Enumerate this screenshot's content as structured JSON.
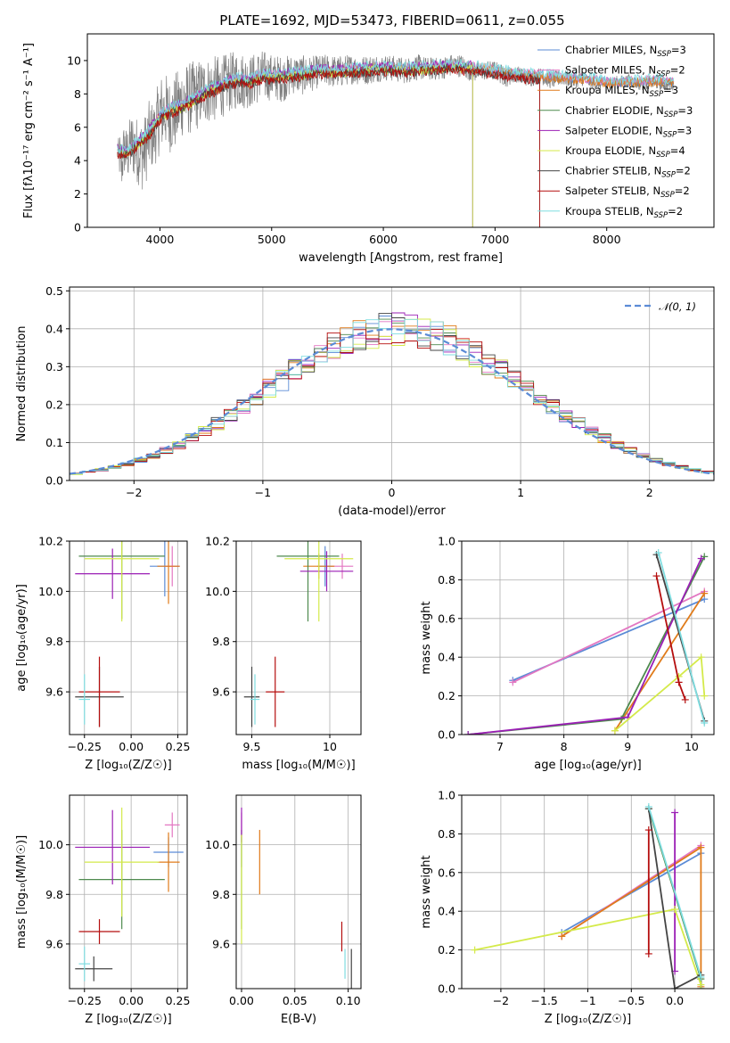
{
  "figure": {
    "title": "PLATE=1692, MJD=53473, FIBERID=0611, z=0.055"
  },
  "chart_data": [
    {
      "id": "spectrum",
      "type": "line",
      "title": "PLATE=1692, MJD=53473, FIBERID=0611, z=0.055",
      "xlabel": "wavelength [Angstrom, rest frame]",
      "ylabel": "Flux [fλ10⁻¹⁷ erg cm⁻² s⁻¹ A⁻¹]",
      "xlim": [
        3350,
        8960
      ],
      "ylim": [
        0,
        11.6
      ],
      "xticks": [
        4000,
        5000,
        6000,
        7000,
        8000
      ],
      "yticks": [
        0,
        2,
        4,
        6,
        8,
        10
      ],
      "grid": false,
      "legend_position": "upper-right",
      "observed": {
        "color": "#808080",
        "x": [
          3620,
          3640,
          3660,
          3680,
          3700,
          3750,
          3800,
          3850,
          3900,
          3950,
          4000,
          4050,
          4100,
          4150,
          4200,
          4300,
          4400,
          4500,
          4600,
          4700,
          4800,
          4900,
          5000,
          5100,
          5200,
          5300,
          5400,
          5500,
          5600,
          5700,
          5800,
          5900,
          6000,
          6100,
          6200,
          6300,
          6400,
          6500,
          6600,
          6700,
          6800,
          6900,
          7000,
          7100,
          7200,
          7300,
          7400,
          7500,
          7600,
          7700,
          7800,
          7900,
          8000,
          8100,
          8200,
          8300,
          8400,
          8500
        ],
        "y": [
          5.0,
          4.2,
          3.6,
          4.8,
          4.3,
          5.0,
          4.6,
          4.3,
          5.4,
          5.6,
          6.8,
          7.0,
          6.6,
          7.0,
          7.6,
          7.8,
          8.2,
          8.3,
          8.6,
          8.9,
          8.7,
          9.1,
          9.0,
          8.9,
          9.2,
          9.1,
          9.3,
          9.4,
          9.3,
          9.5,
          9.4,
          9.5,
          9.6,
          9.5,
          9.4,
          9.6,
          9.5,
          9.5,
          9.7,
          9.7,
          9.3,
          9.4,
          9.4,
          9.0,
          9.2,
          8.9,
          9.1,
          8.8,
          9.0,
          8.8,
          8.9,
          8.6,
          8.6,
          8.7,
          8.8,
          8.6,
          8.7,
          8.6
        ],
        "noise": [
          0,
          1.6,
          1.4,
          1.8,
          1.7,
          2.0,
          2.0,
          2.2,
          2.2,
          2.0,
          2.4,
          2.3,
          2.2,
          2.4,
          2.2,
          2.2,
          2.0,
          2.0,
          1.8,
          1.8,
          1.6,
          1.6,
          1.4,
          1.4,
          1.2,
          1.2,
          1.0,
          1.0,
          1.0,
          0.9,
          0.9,
          0.9,
          0.8,
          0.8,
          0.8,
          0.8,
          0.7,
          0.7,
          0.7,
          0.7,
          0.6,
          0.6,
          0.6,
          0.6,
          0.5,
          0.5,
          0.5,
          0.5,
          0.5,
          0.5,
          0.4,
          0.4,
          0.4,
          0.4,
          0.4,
          0.4,
          0.4,
          0.4
        ]
      },
      "model_x": [
        3620,
        3700,
        3800,
        3900,
        4000,
        4100,
        4200,
        4300,
        4400,
        4500,
        4600,
        4700,
        4800,
        4900,
        5000,
        5200,
        5400,
        5600,
        5800,
        6000,
        6200,
        6400,
        6600,
        6800,
        7000,
        7200,
        7400,
        7600,
        7800,
        8000,
        8200,
        8400,
        8600
      ],
      "model_y": [
        4.5,
        4.4,
        5.0,
        5.6,
        6.6,
        7.0,
        7.2,
        7.6,
        8.0,
        8.3,
        8.6,
        8.8,
        8.7,
        9.0,
        9.0,
        9.1,
        9.3,
        9.3,
        9.4,
        9.5,
        9.4,
        9.5,
        9.6,
        9.5,
        9.3,
        9.1,
        9.0,
        8.9,
        8.8,
        8.6,
        8.6,
        8.7,
        8.6
      ],
      "models": [
        {
          "name": "Chabrier MILES, N_SSP=3",
          "color": "#5b8bd6",
          "offset": 0.1,
          "xmax": 8960
        },
        {
          "name": "Salpeter MILES, N_SSP=2",
          "color": "#e377c2",
          "offset": 0.15,
          "xmax": 8960
        },
        {
          "name": "Kroupa MILES, N_SSP=3",
          "color": "#e07b1a",
          "offset": 0.05,
          "xmax": 8960
        },
        {
          "name": "Chabrier ELODIE, N_SSP=3",
          "color": "#4e8a4e",
          "offset": 0.0,
          "xmax": 6800
        },
        {
          "name": "Salpeter ELODIE, N_SSP=3",
          "color": "#9b1fb5",
          "offset": 0.2,
          "xmax": 6800
        },
        {
          "name": "Kroupa ELODIE, N_SSP=4",
          "color": "#d4ea4a",
          "offset": -0.05,
          "xmax": 6800
        },
        {
          "name": "Chabrier STELIB, N_SSP=2",
          "color": "#444444",
          "offset": -0.1,
          "xmax": 7400
        },
        {
          "name": "Salpeter STELIB, N_SSP=2",
          "color": "#b50e0e",
          "offset": -0.15,
          "xmax": 7400
        },
        {
          "name": "Kroupa STELIB, N_SSP=2",
          "color": "#7fdde0",
          "offset": 0.25,
          "xmax": 8960
        }
      ]
    },
    {
      "id": "residuals",
      "type": "line",
      "xlabel": "(data-model)/error",
      "ylabel": "Normed distribution",
      "xlim": [
        -2.5,
        2.5
      ],
      "ylim": [
        0,
        0.51
      ],
      "xticks": [
        -2,
        -1,
        0,
        1,
        2
      ],
      "yticks": [
        0.0,
        0.1,
        0.2,
        0.3,
        0.4,
        0.5
      ],
      "grid": true,
      "legend_position": "upper-right",
      "reference": {
        "name": "𝒩(0, 1)",
        "color": "#5b8bd6",
        "style": "dashed"
      },
      "bin_width": 0.1,
      "bin_start": -2.5
    },
    {
      "id": "age_vs_Z",
      "type": "scatter",
      "xlabel": "Z [log₁₀(Z/Z☉)]",
      "ylabel": "age  [log₁₀(age/yr)]",
      "xlim": [
        -0.33,
        0.3
      ],
      "ylim": [
        9.43,
        10.2
      ],
      "xticks": [
        -0.25,
        0.0,
        0.25
      ],
      "yticks": [
        9.6,
        9.8,
        10.0,
        10.2
      ],
      "grid": true,
      "points": [
        {
          "color": "#5b8bd6",
          "x": 0.18,
          "y": 10.1,
          "xerr": 0.08,
          "yerr": 0.12
        },
        {
          "color": "#e377c2",
          "x": 0.22,
          "y": 10.1,
          "xerr": 0.04,
          "yerr": 0.08
        },
        {
          "color": "#e07b1a",
          "x": 0.2,
          "y": 10.1,
          "xerr": 0.06,
          "yerr": 0.15
        },
        {
          "color": "#4e8a4e",
          "x": -0.05,
          "y": 10.14,
          "xerr": 0.23,
          "yerr": 0.25
        },
        {
          "color": "#9b1fb5",
          "x": -0.1,
          "y": 10.07,
          "xerr": 0.2,
          "yerr": 0.1
        },
        {
          "color": "#d4ea4a",
          "x": -0.05,
          "y": 10.13,
          "xerr": 0.2,
          "yerr": 0.25
        },
        {
          "color": "#444444",
          "x": -0.17,
          "y": 9.58,
          "xerr": 0.13,
          "yerr": 0.12
        },
        {
          "color": "#b50e0e",
          "x": -0.17,
          "y": 9.6,
          "xerr": 0.11,
          "yerr": 0.14
        },
        {
          "color": "#7fdde0",
          "x": -0.25,
          "y": 9.57,
          "xerr": 0.03,
          "yerr": 0.1
        }
      ]
    },
    {
      "id": "age_vs_mass",
      "type": "scatter",
      "xlabel": "mass [log₁₀(M/M☉)]",
      "xlim": [
        9.4,
        10.2
      ],
      "ylim": [
        9.43,
        10.2
      ],
      "xticks": [
        9.5,
        10.0
      ],
      "yticks": [
        9.6,
        9.8,
        10.0,
        10.2
      ],
      "grid": true,
      "points": [
        {
          "color": "#5b8bd6",
          "x": 9.97,
          "y": 10.1,
          "xerr": 0.05,
          "yerr": 0.08
        },
        {
          "color": "#e377c2",
          "x": 10.08,
          "y": 10.1,
          "xerr": 0.07,
          "yerr": 0.05
        },
        {
          "color": "#e07b1a",
          "x": 9.93,
          "y": 10.1,
          "xerr": 0.1,
          "yerr": 0.05
        },
        {
          "color": "#4e8a4e",
          "x": 9.86,
          "y": 10.14,
          "xerr": 0.2,
          "yerr": 0.26
        },
        {
          "color": "#9b1fb5",
          "x": 9.98,
          "y": 10.08,
          "xerr": 0.17,
          "yerr": 0.08
        },
        {
          "color": "#d4ea4a",
          "x": 9.93,
          "y": 10.13,
          "xerr": 0.22,
          "yerr": 0.25
        },
        {
          "color": "#444444",
          "x": 9.5,
          "y": 9.58,
          "xerr": 0.05,
          "yerr": 0.12
        },
        {
          "color": "#b50e0e",
          "x": 9.65,
          "y": 9.6,
          "xerr": 0.06,
          "yerr": 0.14
        },
        {
          "color": "#7fdde0",
          "x": 9.52,
          "y": 9.57,
          "xerr": 0.03,
          "yerr": 0.1
        }
      ]
    },
    {
      "id": "weight_vs_age",
      "type": "line",
      "xlabel": "age  [log₁₀(age/yr)]",
      "ylabel": "mass weight",
      "xlim": [
        6.4,
        10.35
      ],
      "ylim": [
        0,
        1.0
      ],
      "xticks": [
        7,
        8,
        9,
        10
      ],
      "yticks": [
        0.0,
        0.2,
        0.4,
        0.6,
        0.8,
        1.0
      ],
      "grid": true,
      "series": [
        {
          "color": "#5b8bd6",
          "x": [
            7.2,
            10.2
          ],
          "y": [
            0.28,
            0.7
          ]
        },
        {
          "color": "#e377c2",
          "x": [
            7.2,
            10.2
          ],
          "y": [
            0.27,
            0.74
          ]
        },
        {
          "color": "#e07b1a",
          "x": [
            8.8,
            10.2
          ],
          "y": [
            0.02,
            0.73
          ]
        },
        {
          "color": "#4e8a4e",
          "x": [
            6.5,
            8.9,
            10.2
          ],
          "y": [
            0.0,
            0.08,
            0.92
          ]
        },
        {
          "color": "#9b1fb5",
          "x": [
            6.5,
            9.0,
            10.15
          ],
          "y": [
            0.0,
            0.09,
            0.91
          ]
        },
        {
          "color": "#d4ea4a",
          "x": [
            8.8,
            9.8,
            10.15,
            10.2
          ],
          "y": [
            0.02,
            0.3,
            0.4,
            0.2
          ]
        },
        {
          "color": "#444444",
          "x": [
            9.45,
            10.2
          ],
          "y": [
            0.93,
            0.07
          ]
        },
        {
          "color": "#b50e0e",
          "x": [
            9.45,
            9.8,
            9.9
          ],
          "y": [
            0.82,
            0.27,
            0.18
          ]
        },
        {
          "color": "#7fdde0",
          "x": [
            9.48,
            10.2
          ],
          "y": [
            0.94,
            0.06
          ]
        }
      ]
    },
    {
      "id": "mass_vs_Z",
      "type": "scatter",
      "xlabel": "Z [log₁₀(Z/Z☉)]",
      "ylabel": "mass [log₁₀(M/M☉)]",
      "xlim": [
        -0.33,
        0.3
      ],
      "ylim": [
        9.42,
        10.2
      ],
      "xticks": [
        -0.25,
        0.0,
        0.25
      ],
      "yticks": [
        9.6,
        9.8,
        10.0
      ],
      "grid": true,
      "points": [
        {
          "color": "#5b8bd6",
          "x": 0.2,
          "y": 9.97,
          "xerr": 0.08,
          "yerr": 0.06
        },
        {
          "color": "#e377c2",
          "x": 0.22,
          "y": 10.08,
          "xerr": 0.04,
          "yerr": 0.05
        },
        {
          "color": "#e07b1a",
          "x": 0.2,
          "y": 9.93,
          "xerr": 0.06,
          "yerr": 0.12
        },
        {
          "color": "#4e8a4e",
          "x": -0.05,
          "y": 9.86,
          "xerr": 0.23,
          "yerr": 0.2
        },
        {
          "color": "#9b1fb5",
          "x": -0.1,
          "y": 9.99,
          "xerr": 0.2,
          "yerr": 0.15
        },
        {
          "color": "#d4ea4a",
          "x": -0.05,
          "y": 9.93,
          "xerr": 0.2,
          "yerr": 0.22
        },
        {
          "color": "#444444",
          "x": -0.2,
          "y": 9.5,
          "xerr": 0.1,
          "yerr": 0.05
        },
        {
          "color": "#b50e0e",
          "x": -0.17,
          "y": 9.65,
          "xerr": 0.11,
          "yerr": 0.05
        },
        {
          "color": "#7fdde0",
          "x": -0.25,
          "y": 9.52,
          "xerr": 0.03,
          "yerr": 0.07
        }
      ]
    },
    {
      "id": "mass_vs_ebv",
      "type": "scatter",
      "xlabel": "E(B-V)",
      "xlim": [
        -0.005,
        0.112
      ],
      "ylim": [
        9.42,
        10.2
      ],
      "xticks": [
        0.0,
        0.05,
        0.1
      ],
      "yticks": [
        9.6,
        9.8,
        10.0
      ],
      "grid": true,
      "points": [
        {
          "color": "#5b8bd6",
          "x": 0.0,
          "y": 9.97,
          "xerr": 0,
          "yerr": 0.06
        },
        {
          "color": "#e377c2",
          "x": 0.0,
          "y": 10.08,
          "xerr": 0,
          "yerr": 0.05
        },
        {
          "color": "#e07b1a",
          "x": 0.017,
          "y": 9.93,
          "xerr": 0,
          "yerr": 0.13
        },
        {
          "color": "#4e8a4e",
          "x": 0.0,
          "y": 9.86,
          "xerr": 0,
          "yerr": 0.2
        },
        {
          "color": "#9b1fb5",
          "x": 0.0,
          "y": 10.08,
          "xerr": 0,
          "yerr": 0.07
        },
        {
          "color": "#d4ea4a",
          "x": 0.0,
          "y": 9.82,
          "xerr": 0,
          "yerr": 0.22
        },
        {
          "color": "#444444",
          "x": 0.103,
          "y": 9.5,
          "xerr": 0,
          "yerr": 0.08
        },
        {
          "color": "#b50e0e",
          "x": 0.094,
          "y": 9.63,
          "xerr": 0,
          "yerr": 0.06
        },
        {
          "color": "#7fdde0",
          "x": 0.097,
          "y": 9.52,
          "xerr": 0,
          "yerr": 0.06
        }
      ]
    },
    {
      "id": "weight_vs_Z",
      "type": "line",
      "xlabel": "Z [log₁₀(Z/Z☉)]",
      "ylabel": "mass weight",
      "xlim": [
        -2.45,
        0.45
      ],
      "ylim": [
        0,
        1.0
      ],
      "xticks": [
        -2.0,
        -1.5,
        -1.0,
        -0.5,
        0.0
      ],
      "yticks": [
        0.0,
        0.2,
        0.4,
        0.6,
        0.8,
        1.0
      ],
      "grid": true,
      "series": [
        {
          "color": "#5b8bd6",
          "x": [
            -1.3,
            0.3
          ],
          "y": [
            0.29,
            0.7
          ]
        },
        {
          "color": "#e377c2",
          "x": [
            -1.3,
            0.3
          ],
          "y": [
            0.27,
            0.74
          ]
        },
        {
          "color": "#e07b1a",
          "x": [
            -1.3,
            0.3,
            0.3
          ],
          "y": [
            0.27,
            0.73,
            0.01
          ]
        },
        {
          "color": "#4e8a4e",
          "x": [
            -0.3,
            0.3,
            0.3
          ],
          "y": [
            0.93,
            0.05,
            0.0
          ]
        },
        {
          "color": "#9b1fb5",
          "x": [
            0.0,
            0.0
          ],
          "y": [
            0.91,
            0.09
          ]
        },
        {
          "color": "#d4ea4a",
          "x": [
            -2.3,
            0.0,
            0.3
          ],
          "y": [
            0.2,
            0.41,
            0.02
          ]
        },
        {
          "color": "#444444",
          "x": [
            -0.3,
            0.0,
            0.3
          ],
          "y": [
            0.93,
            0.0,
            0.07
          ]
        },
        {
          "color": "#b50e0e",
          "x": [
            -0.3,
            -0.3
          ],
          "y": [
            0.82,
            0.18
          ]
        },
        {
          "color": "#7fdde0",
          "x": [
            -0.3,
            0.3
          ],
          "y": [
            0.94,
            0.06
          ]
        }
      ]
    }
  ]
}
